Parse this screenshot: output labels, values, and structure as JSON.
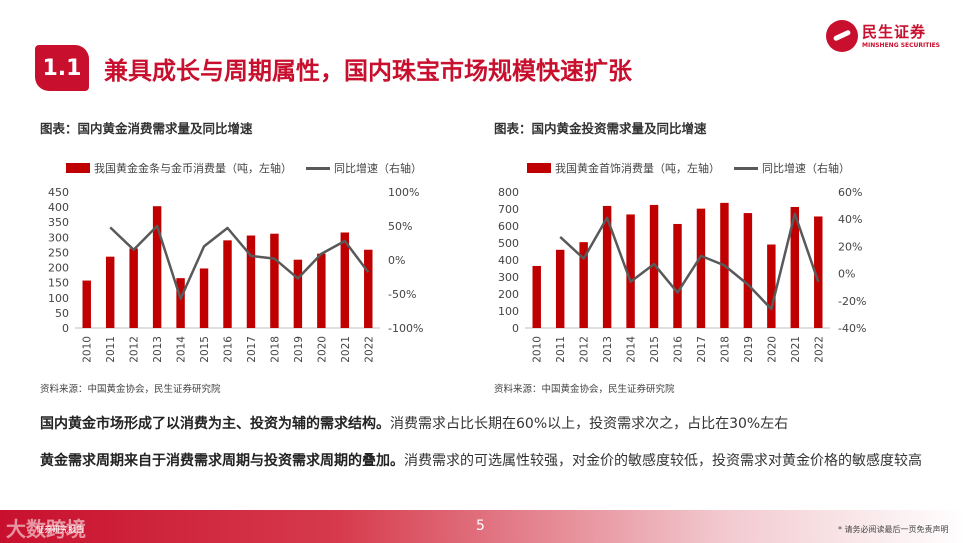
{
  "brand": {
    "name": "民生证券",
    "name_en": "MINSHENG SECURITIES",
    "color": "#c8102e"
  },
  "section": {
    "number": "1.1",
    "title": "兼具成长与周期属性，国内珠宝市场规模快速扩张"
  },
  "charts": [
    {
      "heading": "图表：国内黄金消费需求量及同比增速",
      "source": "资料来源：中国黄金协会，民生证券研究院"
    },
    {
      "heading": "图表：国内黄金投资需求量及同比增速",
      "source": "资料来源：中国黄金协会，民生证券研究院"
    }
  ],
  "chart_data": [
    {
      "type": "bar",
      "title": "图表：国内黄金消费需求量及同比增速",
      "categories": [
        "2010",
        "2011",
        "2012",
        "2013",
        "2014",
        "2015",
        "2016",
        "2017",
        "2018",
        "2019",
        "2020",
        "2021",
        "2022"
      ],
      "series": [
        {
          "name": "我国黄金金条与金币消费量（吨，左轴）",
          "type": "bar",
          "axis": "left",
          "color": "#c00000",
          "values": [
            157,
            236,
            263,
            403,
            165,
            197,
            290,
            306,
            312,
            226,
            246,
            316,
            259
          ]
        },
        {
          "name": "同比增速（右轴）",
          "type": "line",
          "axis": "right",
          "color": "#595959",
          "values": [
            null,
            48,
            15,
            50,
            -57,
            20,
            47,
            6,
            2,
            -27,
            9,
            28,
            -18
          ]
        }
      ],
      "left_axis": {
        "range": [
          0,
          450
        ],
        "ticks": [
          "450",
          "400",
          "350",
          "300",
          "250",
          "200",
          "150",
          "100",
          "50",
          "0"
        ]
      },
      "right_axis": {
        "range": [
          -100,
          100
        ],
        "ticks": [
          "100%",
          "50%",
          "0%",
          "-50%",
          "-100%"
        ]
      }
    },
    {
      "type": "bar",
      "title": "图表：国内黄金投资需求量及同比增速",
      "categories": [
        "2010",
        "2011",
        "2012",
        "2013",
        "2014",
        "2015",
        "2016",
        "2017",
        "2018",
        "2019",
        "2020",
        "2021",
        "2022"
      ],
      "series": [
        {
          "name": "我国黄金首饰消费量（吨，左轴）",
          "type": "bar",
          "axis": "left",
          "color": "#c00000",
          "values": [
            365,
            460,
            505,
            718,
            668,
            724,
            612,
            702,
            736,
            676,
            491,
            712,
            656
          ]
        },
        {
          "name": "同比增速（右轴）",
          "type": "line",
          "axis": "right",
          "color": "#595959",
          "values": [
            null,
            27,
            11,
            41,
            -6,
            7,
            -14,
            13,
            6,
            -8,
            -26,
            44,
            -6
          ]
        }
      ],
      "left_axis": {
        "range": [
          0,
          800
        ],
        "ticks": [
          "800",
          "700",
          "600",
          "500",
          "400",
          "300",
          "200",
          "100",
          "0"
        ]
      },
      "right_axis": {
        "range": [
          -40,
          60
        ],
        "ticks": [
          "60%",
          "40%",
          "20%",
          "0%",
          "-20%",
          "-40%"
        ]
      }
    }
  ],
  "paragraphs": [
    {
      "bold": "国内黄金市场形成了以消费为主、投资为辅的需求结构。",
      "text": "消费需求占比长期在60%以上，投资需求次之，占比在30%左右"
    },
    {
      "bold": "黄金需求周期来自于消费需求周期与投资需求周期的叠加。",
      "text": "消费需求的可选属性较强，对金价的敏感度较低，投资需求对黄金价格的敏感度较高"
    }
  ],
  "footer": {
    "watermark": "大数跨境",
    "small_text": "证券研究报告",
    "page": "5",
    "disclaimer": "* 请务必阅读最后一页免责声明"
  }
}
